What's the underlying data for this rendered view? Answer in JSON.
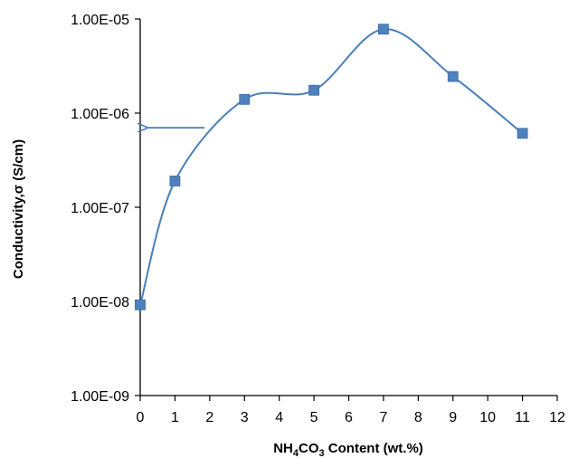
{
  "chart_data": {
    "type": "scatter",
    "title": "",
    "xlabel": {
      "text_before": "NH",
      "sub1": "4",
      "text_mid": "CO",
      "sub2": "3",
      "text_after": " Content (wt.%)"
    },
    "ylabel": "Conductivity,σ  (S/cm)",
    "x_ticks": [
      "0",
      "1",
      "2",
      "3",
      "4",
      "5",
      "6",
      "7",
      "8",
      "9",
      "10",
      "11",
      "12"
    ],
    "y_ticks": [
      "1.00E-09",
      "1.00E-08",
      "1.00E-07",
      "1.00E-06",
      "1.00E-05"
    ],
    "xlim": [
      0,
      12
    ],
    "ylim": [
      1e-09,
      1e-05
    ],
    "y_scale": "log",
    "grid": false,
    "legend": "none",
    "smoothed_line": true,
    "series": [
      {
        "x": [
          0,
          1,
          3,
          5,
          7,
          9,
          11
        ],
        "y": [
          9.2e-09,
          1.9e-07,
          1.4e-06,
          1.75e-06,
          7.8e-06,
          2.45e-06,
          6.1e-07
        ]
      }
    ],
    "annotations": [
      {
        "type": "arrow",
        "direction": "left",
        "x_from": 1.85,
        "x_to": 0.15,
        "y": 7e-07
      }
    ],
    "colors": {
      "series": "#4a7ebb",
      "marker": "#4f81bd",
      "axis": "#000000"
    }
  }
}
